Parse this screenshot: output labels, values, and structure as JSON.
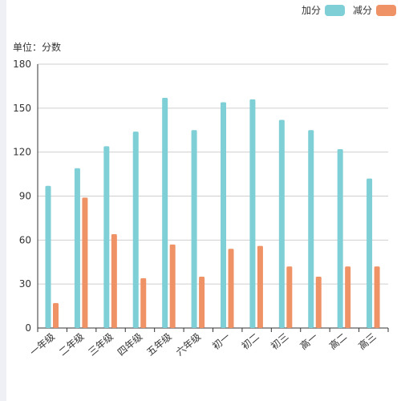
{
  "unit_label": "单位：分数",
  "legend": [
    {
      "label": "加分",
      "color": "#7ecfd6"
    },
    {
      "label": "减分",
      "color": "#ef9266"
    }
  ],
  "chart_data": {
    "type": "bar",
    "categories": [
      "一年级",
      "二年级",
      "三年级",
      "四年级",
      "五年级",
      "六年级",
      "初一",
      "初二",
      "初三",
      "高一",
      "高二",
      "高三"
    ],
    "series": [
      {
        "name": "加分",
        "color": "#7ecfd6",
        "values": [
          97,
          109,
          124,
          134,
          157,
          135,
          154,
          156,
          142,
          135,
          122,
          102
        ]
      },
      {
        "name": "减分",
        "color": "#ef9266",
        "values": [
          17,
          89,
          64,
          34,
          57,
          35,
          54,
          56,
          42,
          35,
          42,
          42
        ]
      }
    ],
    "ylim": [
      0,
      180
    ],
    "yticks": [
      0,
      30,
      60,
      90,
      120,
      150,
      180
    ],
    "grid": true,
    "legend_position": "top-right",
    "xlabel": "",
    "ylabel": "单位：分数"
  }
}
